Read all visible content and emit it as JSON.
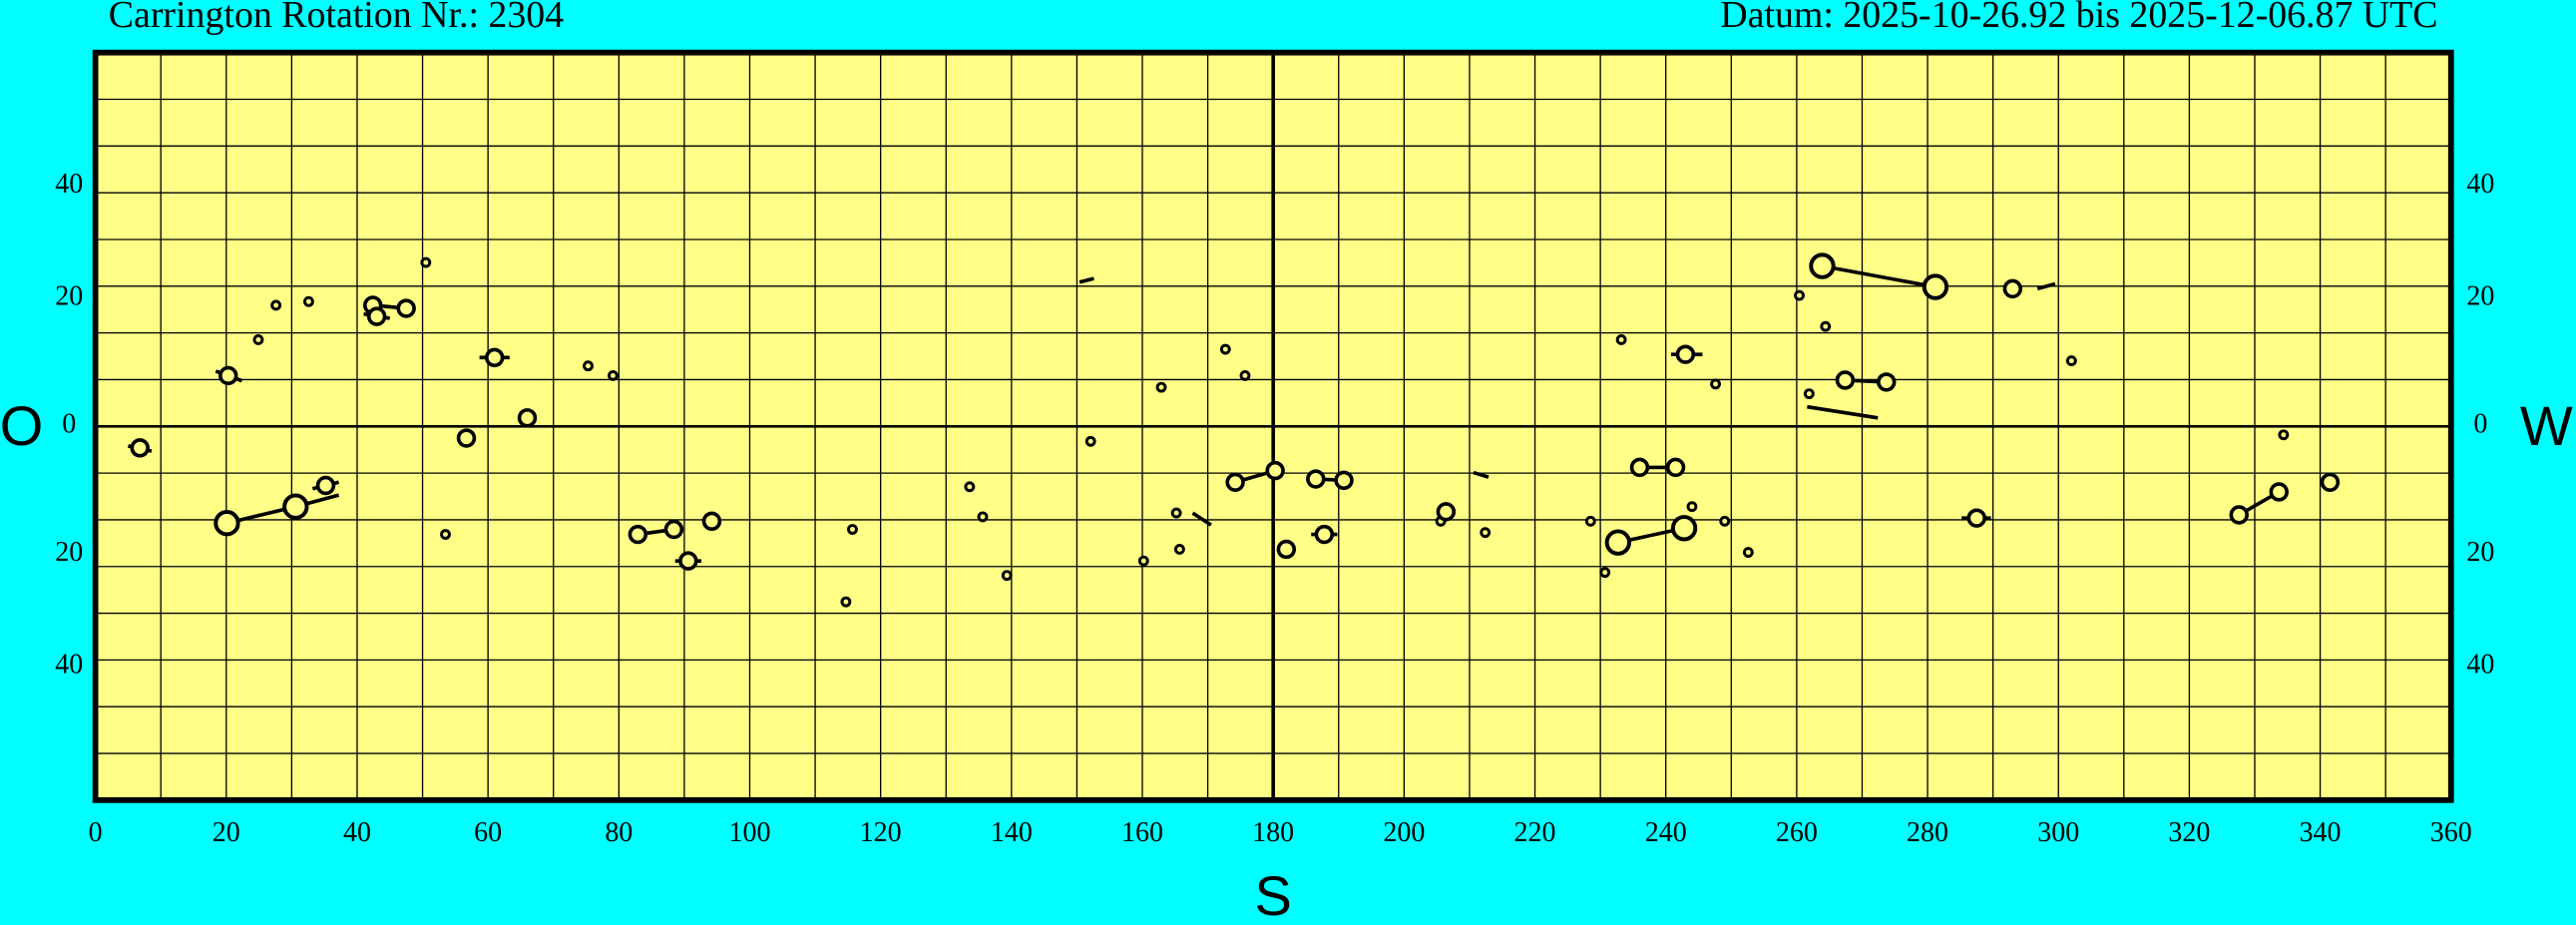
{
  "chart_data": {
    "type": "scatter",
    "title_left": "Carrington Rotation Nr.: 2304",
    "title_right": "Datum: 2025-10-26.92 bis 2025-12-06.87 UTC",
    "east_label": "O",
    "west_label": "W",
    "south_label": "S",
    "xlim": [
      0,
      360
    ],
    "xticks": [
      0,
      20,
      40,
      60,
      80,
      100,
      120,
      140,
      160,
      180,
      200,
      220,
      240,
      260,
      280,
      300,
      320,
      340,
      360
    ],
    "ylim": [
      -90,
      90
    ],
    "yscale": "sine",
    "yticks": [
      {
        "value": -40,
        "label": "40"
      },
      {
        "value": -20,
        "label": "20"
      },
      0,
      20,
      40
    ],
    "grid": true,
    "plot_color": "#ffff88",
    "color": "#000000",
    "series": [
      {
        "marker": "dot",
        "x": [
          24.9,
          27.6,
          32.6,
          50.5,
          75.3,
          79.1,
          53.5,
          115.7,
          114.7,
          133.6,
          135.6,
          139.3,
          152.1,
          162.9,
          172.7,
          175.7,
          165.2,
          165.7,
          160.2,
          205.6,
          212.4,
          233.2,
          247.6,
          228.5,
          230.7,
          244,
          249,
          252.6,
          260.4,
          264.4,
          261.9,
          302,
          334.4
        ],
        "y": [
          13.4,
          18.9,
          19.5,
          26,
          9.3,
          7.8,
          -16.8,
          -16,
          -28,
          -9.3,
          -14,
          -23.5,
          -2.3,
          6,
          11.9,
          7.8,
          -13.4,
          -19.2,
          -21.1,
          -14.7,
          -16.5,
          13.4,
          6.5,
          -14.7,
          -23,
          -12.4,
          -14.7,
          -19.7,
          20.5,
          15.5,
          5,
          10.1,
          -1.3
        ]
      },
      {
        "marker": "circle",
        "x": [
          6.8,
          20.3,
          42.4,
          47.5,
          43,
          61,
          66,
          56.7,
          35.2,
          82.9,
          88.4,
          90.6,
          94.2,
          174.2,
          180.3,
          182,
          186.5,
          190.8,
          187.8,
          206.4,
          243,
          236,
          241.5,
          267.4,
          273.7,
          293,
          287.5,
          327.6,
          333.7,
          341.5
        ],
        "y": [
          -3.3,
          7.8,
          18.9,
          18.4,
          17.1,
          10.6,
          1.3,
          -1.8,
          -9.1,
          -16.8,
          -16,
          -21.1,
          -14.7,
          -8.6,
          -6.8,
          -19.2,
          -8.1,
          -8.3,
          -16.8,
          -13.2,
          11.1,
          -6.3,
          -6.3,
          7.1,
          6.8,
          21.6,
          -14.2,
          -13.7,
          -10.1,
          -8.6
        ]
      },
      {
        "marker": "large-circle",
        "x": [
          20.1,
          30.6,
          232.7,
          242.8,
          263.9,
          281.2
        ],
        "y": [
          -15,
          -12.4,
          -18.1,
          -15.8,
          25.4,
          21.9
        ]
      }
    ],
    "segments": [
      {
        "x": [
          5,
          8.6
        ],
        "y": [
          -3,
          -3.8
        ]
      },
      {
        "x": [
          18.4,
          22.4
        ],
        "y": [
          8.5,
          7
        ]
      },
      {
        "x": [
          42.4,
          47.5
        ],
        "y": [
          18.9,
          18.4
        ]
      },
      {
        "x": [
          41,
          45
        ],
        "y": [
          17.5,
          16.8
        ]
      },
      {
        "x": [
          58.7,
          63.3
        ],
        "y": [
          10.6,
          10.6
        ]
      },
      {
        "x": [
          20.1,
          30.6
        ],
        "y": [
          -15,
          -12.4
        ]
      },
      {
        "x": [
          30.6,
          37.2
        ],
        "y": [
          -12.4,
          -10.6
        ]
      },
      {
        "x": [
          33.2,
          37.2
        ],
        "y": [
          -9.6,
          -8.6
        ]
      },
      {
        "x": [
          82.9,
          88.4
        ],
        "y": [
          -16.8,
          -16
        ]
      },
      {
        "x": [
          88.6,
          92.6
        ],
        "y": [
          -21.1,
          -21.1
        ]
      },
      {
        "x": [
          150.4,
          152.6
        ],
        "y": [
          22.7,
          23.3
        ]
      },
      {
        "x": [
          167.7,
          170.5
        ],
        "y": [
          -13.4,
          -15.3
        ]
      },
      {
        "x": [
          174.2,
          180.3
        ],
        "y": [
          -8.6,
          -6.8
        ]
      },
      {
        "x": [
          186.5,
          190.8
        ],
        "y": [
          -8.1,
          -8.3
        ]
      },
      {
        "x": [
          185.8,
          189.8
        ],
        "y": [
          -16.8,
          -16.8
        ]
      },
      {
        "x": [
          210.6,
          212.9
        ],
        "y": [
          -7.1,
          -7.8
        ]
      },
      {
        "x": [
          240.8,
          245.6
        ],
        "y": [
          11.1,
          11.1
        ]
      },
      {
        "x": [
          236,
          241.5
        ],
        "y": [
          -6.3,
          -6.3
        ]
      },
      {
        "x": [
          232.7,
          242.8
        ],
        "y": [
          -18.1,
          -15.8
        ]
      },
      {
        "x": [
          263.9,
          281.2
        ],
        "y": [
          25.4,
          21.9
        ]
      },
      {
        "x": [
          267.4,
          273.7
        ],
        "y": [
          7.1,
          6.8
        ]
      },
      {
        "x": [
          261.6,
          272.4
        ],
        "y": [
          3,
          1.3
        ]
      },
      {
        "x": [
          296.8,
          299.5
        ],
        "y": [
          21.6,
          22.4
        ]
      },
      {
        "x": [
          285.2,
          289.7
        ],
        "y": [
          -14.2,
          -14.2
        ]
      },
      {
        "x": [
          327.6,
          333.7
        ],
        "y": [
          -13.7,
          -10.1
        ]
      }
    ]
  }
}
